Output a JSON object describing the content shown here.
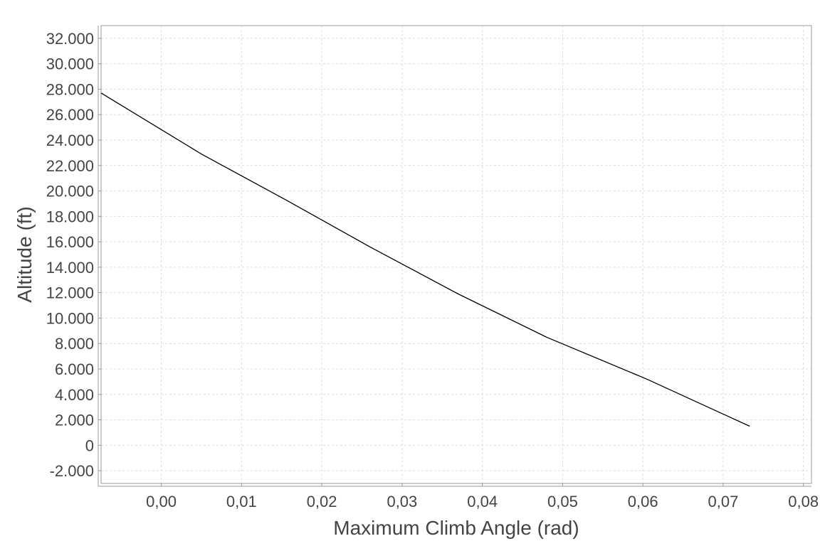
{
  "chart_data": {
    "type": "line",
    "title": "",
    "xlabel": "Maximum Climb Angle (rad)",
    "ylabel": "Altitude (ft)",
    "xlim": [
      -0.0075,
      0.081
    ],
    "ylim": [
      -3000,
      33000
    ],
    "x_ticks": [
      0.0,
      0.01,
      0.02,
      0.03,
      0.04,
      0.05,
      0.06,
      0.07,
      0.08
    ],
    "x_tick_labels": [
      "0,00",
      "0,01",
      "0,02",
      "0,03",
      "0,04",
      "0,05",
      "0,06",
      "0,07",
      "0,08"
    ],
    "y_ticks": [
      -2000,
      0,
      2000,
      4000,
      6000,
      8000,
      10000,
      12000,
      14000,
      16000,
      18000,
      20000,
      22000,
      24000,
      26000,
      28000,
      30000,
      32000
    ],
    "y_tick_labels": [
      "-2.000",
      "0",
      "2.000",
      "4.000",
      "6.000",
      "8.000",
      "10.000",
      "12.000",
      "14.000",
      "16.000",
      "18.000",
      "20.000",
      "22.000",
      "24.000",
      "26.000",
      "28.000",
      "30.000",
      "32.000"
    ],
    "grid": true,
    "legend": "none",
    "series": [
      {
        "color": "#000000",
        "x": [
          -0.0075,
          0.005,
          0.0155,
          0.026,
          0.037,
          0.048,
          0.0605,
          0.0733
        ],
        "y": [
          27700,
          22900,
          19300,
          15600,
          11900,
          8500,
          5200,
          1500
        ]
      }
    ]
  }
}
